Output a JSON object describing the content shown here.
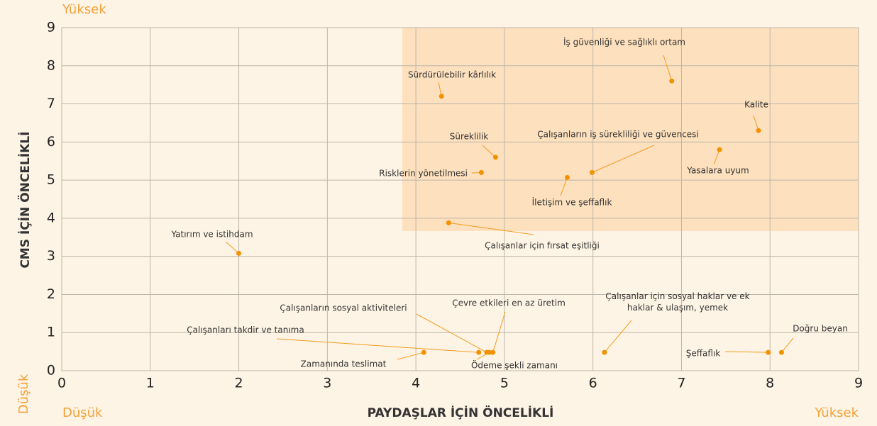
{
  "chart_data": {
    "type": "scatter",
    "xlabel": "PAYDAŞLAR İÇİN ÖNCELİKLİ",
    "ylabel": "CMS İÇİN ÖNCELİKLİ",
    "annotations": [
      "Yüksek",
      "Düşük",
      "Düşük",
      "Yüksek"
    ],
    "labels": [
      "Sürdürülebilir kârlılık",
      "İş güvenliği ve sağlıklı ortam",
      "Kalite",
      "Süreklilik",
      "Yasalara uyum",
      "Çalışanların iş sürekliliği ve güvencesi",
      "Risklerin yönetilmesi",
      "İletişim ve şeffaflık",
      "Çalışanlar için fırsat eşitliği",
      "Yatırım ve istihdam",
      "Zamanında teslimat",
      "Çalışanları takdir ve tanıma",
      "Çalışanların sosyal aktiviteleri",
      "Çevre etkileri en az üretim",
      "Ödeme şekli zamanı",
      "Çalışanlar için sosyal haklar ve ek haklar & ulaşım, yemek",
      "Şeffaflık",
      "Doğru beyan"
    ],
    "x": [
      4.29,
      6.89,
      7.87,
      4.9,
      7.43,
      5.99,
      4.74,
      5.71,
      4.37,
      2.0,
      4.09,
      4.71,
      4.8,
      4.87,
      4.83,
      6.13,
      7.98,
      8.13
    ],
    "values": [
      7.2,
      7.6,
      6.3,
      5.6,
      5.8,
      5.2,
      5.2,
      5.07,
      3.88,
      3.08,
      0.48,
      0.48,
      0.48,
      0.48,
      0.48,
      0.48,
      0.48,
      0.48
    ],
    "color": "#f39200",
    "xlim": [
      0,
      9
    ],
    "ylim": [
      0,
      9
    ],
    "xticks": [
      0,
      1,
      2,
      3,
      4,
      5,
      6,
      7,
      8,
      9
    ],
    "yticks": [
      0,
      1,
      2,
      3,
      4,
      5,
      6,
      7,
      8,
      9
    ],
    "grid": true
  }
}
